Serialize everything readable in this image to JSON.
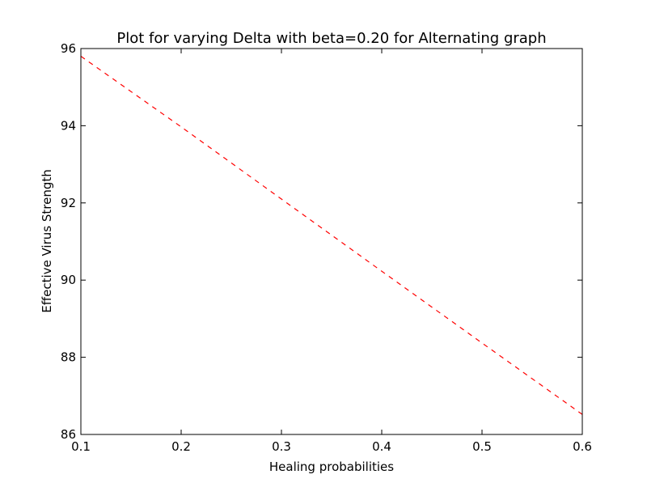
{
  "chart_data": {
    "type": "line",
    "title": "Plot for varying Delta with beta=0.20 for Alternating graph",
    "xlabel": "Healing probabilities",
    "ylabel": "Effective Virus Strength",
    "xlim": [
      0.1,
      0.6
    ],
    "ylim": [
      86,
      96
    ],
    "xticks": [
      "0.1",
      "0.2",
      "0.3",
      "0.4",
      "0.5",
      "0.6"
    ],
    "yticks": [
      "86",
      "88",
      "90",
      "92",
      "94",
      "96"
    ],
    "grid": false,
    "series": [
      {
        "color": "#ff0000",
        "line_style": "dashed",
        "x": [
          0.1,
          0.2,
          0.3,
          0.4,
          0.5,
          0.6
        ],
        "y": [
          95.8,
          93.97,
          92.1,
          90.23,
          88.37,
          86.52
        ]
      }
    ]
  }
}
